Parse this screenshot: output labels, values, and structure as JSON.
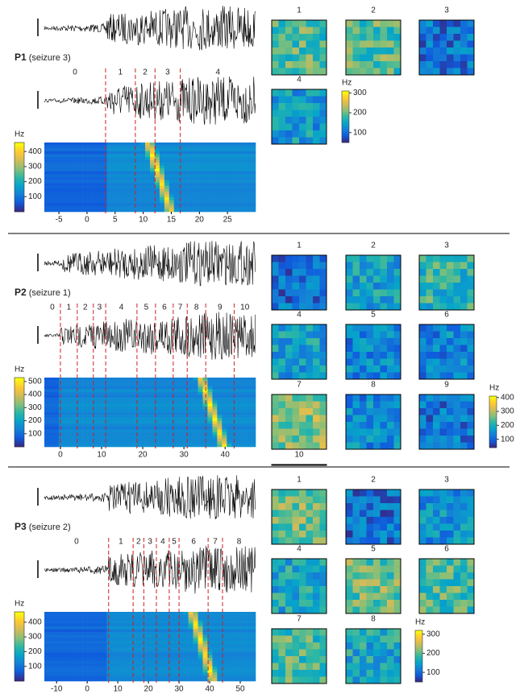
{
  "panels": [
    {
      "id": "P1",
      "subtitle": "(seizure 3)",
      "segments": [
        "0",
        "1",
        "2",
        "3",
        "4"
      ],
      "boundaries": [
        3.3,
        8.6,
        12.1,
        16.6
      ],
      "xlim": [
        -7.6,
        30
      ],
      "xticks": [
        -5,
        0,
        5,
        10,
        15,
        20,
        25
      ],
      "spec_unit": "Hz",
      "spec_clim": [
        0,
        460
      ],
      "spec_ticks": [
        100,
        200,
        300,
        400
      ],
      "maps": [
        "1",
        "2",
        "3",
        "4"
      ],
      "map_unit": "Hz",
      "map_clim": [
        50,
        310
      ],
      "map_ticks": [
        100,
        200,
        300
      ]
    },
    {
      "id": "P2",
      "subtitle": "(seizure 1)",
      "segments": [
        "0",
        "1",
        "2",
        "3",
        "4",
        "5",
        "6",
        "7",
        "8",
        "9",
        "10"
      ],
      "boundaries": [
        0,
        4.1,
        8,
        11,
        18.6,
        23.1,
        27.4,
        30.8,
        35.3,
        42.2
      ],
      "xlim": [
        -3.9,
        47.4
      ],
      "xticks": [
        0,
        10,
        20,
        30,
        40
      ],
      "spec_unit": "Hz",
      "spec_clim": [
        0,
        530
      ],
      "spec_ticks": [
        100,
        200,
        300,
        400,
        500
      ],
      "maps": [
        "1",
        "2",
        "3",
        "4",
        "5",
        "6",
        "7",
        "8",
        "9",
        "10"
      ],
      "map_unit": "Hz",
      "map_clim": [
        40,
        410
      ],
      "map_ticks": [
        100,
        200,
        300,
        400
      ]
    },
    {
      "id": "P3",
      "subtitle": "(seizure 2)",
      "segments": [
        "0",
        "1",
        "2",
        "3",
        "4",
        "5",
        "6",
        "7",
        "8"
      ],
      "boundaries": [
        7,
        15,
        18.5,
        22.6,
        26.8,
        30,
        39.5,
        44.2
      ],
      "xlim": [
        -14,
        55
      ],
      "xticks": [
        -10,
        0,
        10,
        20,
        30,
        40,
        50
      ],
      "spec_unit": "Hz",
      "spec_clim": [
        0,
        470
      ],
      "spec_ticks": [
        100,
        200,
        300,
        400
      ],
      "maps": [
        "1",
        "2",
        "3",
        "4",
        "5",
        "6",
        "7",
        "8"
      ],
      "map_unit": "Hz",
      "map_clim": [
        50,
        320
      ],
      "map_ticks": [
        100,
        200,
        300
      ]
    }
  ]
}
